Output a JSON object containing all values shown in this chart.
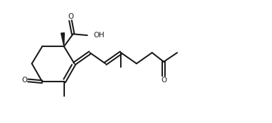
{
  "background": "#ffffff",
  "line_color": "#1a1a1a",
  "line_width": 1.5,
  "fig_width": 3.94,
  "fig_height": 1.78,
  "dpi": 100,
  "xlim": [
    0,
    10.5
  ],
  "ylim": [
    0,
    4.7
  ]
}
